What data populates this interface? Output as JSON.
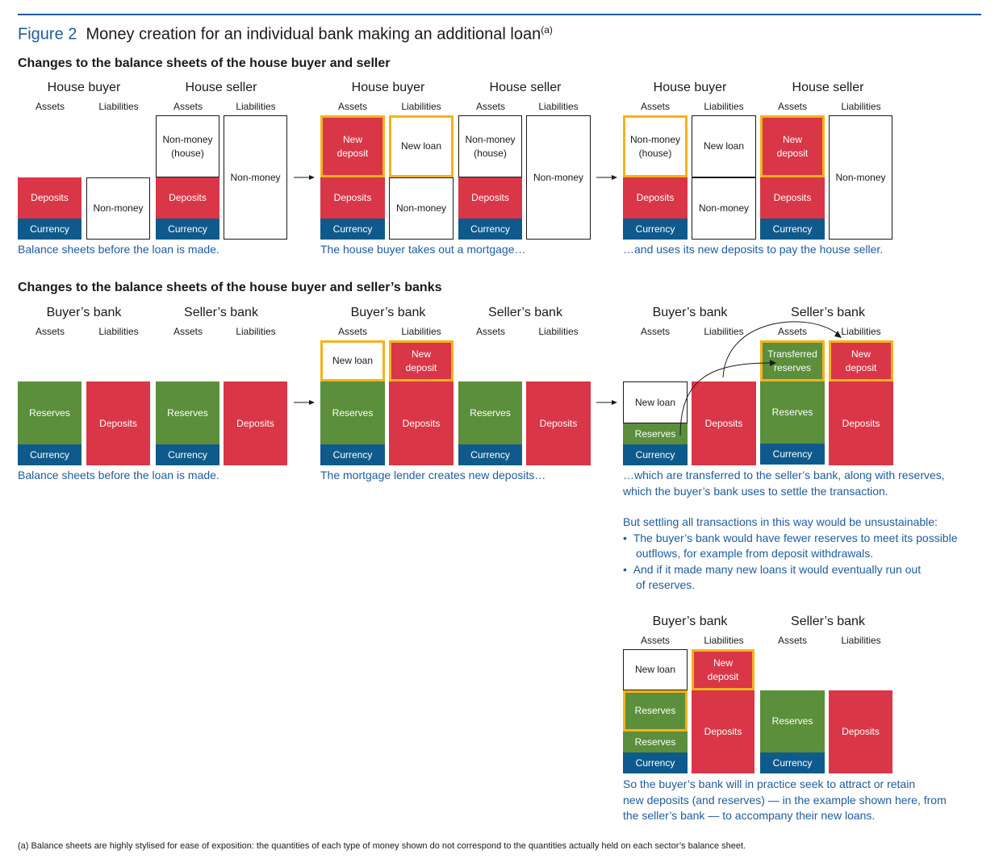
{
  "figure": {
    "number": "Figure 2",
    "title": "Money creation for an individual bank making an additional loan",
    "note_marker": "(a)"
  },
  "section1": {
    "title": "Changes to the balance sheets of the house buyer and seller",
    "panel1": {
      "entity_a": "House buyer",
      "entity_b": "House seller",
      "assets": "Assets",
      "liabilities": "Liabilities",
      "boxes": {
        "buyer_deposits": "Deposits",
        "buyer_currency": "Currency",
        "buyer_nonmoney": "Non-money",
        "seller_nonmoney_house": "Non-money\n(house)",
        "seller_deposits": "Deposits",
        "seller_currency": "Currency",
        "seller_nonmoney": "Non-money"
      },
      "caption": "Balance sheets before the loan is made."
    },
    "panel2": {
      "entity_a": "House buyer",
      "entity_b": "House seller",
      "assets": "Assets",
      "liabilities": "Liabilities",
      "boxes": {
        "buyer_new_deposit": "New\ndeposit",
        "buyer_deposits": "Deposits",
        "buyer_currency": "Currency",
        "buyer_new_loan": "New loan",
        "buyer_nonmoney": "Non-money",
        "seller_nonmoney_house": "Non-money\n(house)",
        "seller_deposits": "Deposits",
        "seller_currency": "Currency",
        "seller_nonmoney": "Non-money"
      },
      "caption": "The house buyer takes out a mortgage…"
    },
    "panel3": {
      "entity_a": "House buyer",
      "entity_b": "House seller",
      "assets": "Assets",
      "liabilities": "Liabilities",
      "boxes": {
        "buyer_nonmoney_house": "Non-money\n(house)",
        "buyer_deposits": "Deposits",
        "buyer_currency": "Currency",
        "buyer_new_loan": "New loan",
        "buyer_nonmoney": "Non-money",
        "seller_new_deposit": "New\ndeposit",
        "seller_deposits": "Deposits",
        "seller_currency": "Currency",
        "seller_nonmoney": "Non-money"
      },
      "caption": "…and uses its new deposits to pay the house seller."
    }
  },
  "section2": {
    "title": "Changes to the balance sheets of the house buyer and seller’s banks",
    "panel1": {
      "entity_a": "Buyer’s bank",
      "entity_b": "Seller’s bank",
      "assets": "Assets",
      "liabilities": "Liabilities",
      "boxes": {
        "buyer_reserves": "Reserves",
        "buyer_currency": "Currency",
        "buyer_deposits": "Deposits",
        "seller_reserves": "Reserves",
        "seller_currency": "Currency",
        "seller_deposits": "Deposits"
      },
      "caption": "Balance sheets before the loan is made."
    },
    "panel2": {
      "entity_a": "Buyer’s bank",
      "entity_b": "Seller’s bank",
      "assets": "Assets",
      "liabilities": "Liabilities",
      "boxes": {
        "buyer_new_loan": "New loan",
        "buyer_reserves": "Reserves",
        "buyer_currency": "Currency",
        "buyer_new_deposit": "New\ndeposit",
        "buyer_deposits": "Deposits",
        "seller_reserves": "Reserves",
        "seller_currency": "Currency",
        "seller_deposits": "Deposits"
      },
      "caption": "The mortgage lender creates new deposits…"
    },
    "panel3": {
      "entity_a": "Buyer’s bank",
      "entity_b": "Seller’s bank",
      "assets": "Assets",
      "liabilities": "Liabilities",
      "boxes": {
        "buyer_new_loan": "New loan",
        "buyer_reserves": "Reserves",
        "buyer_currency": "Currency",
        "buyer_deposits": "Deposits",
        "seller_transferred_reserves": "Transferred\nreserves",
        "seller_reserves": "Reserves",
        "seller_currency": "Currency",
        "seller_new_deposit": "New\ndeposit",
        "seller_deposits": "Deposits"
      },
      "caption_lines": [
        "…which are transferred to the seller’s bank, along with reserves,",
        "which the buyer’s bank uses to settle the transaction."
      ]
    },
    "unsustainable": {
      "intro": "But settling all transactions in this way would be unsustainable:",
      "bullet_mark": "•",
      "bullet1_lines": [
        "The buyer’s bank would have fewer reserves to meet its possible",
        "outflows, for example from deposit withdrawals."
      ],
      "bullet2_lines": [
        "And if it made many new loans it would eventually run out",
        "of reserves."
      ]
    },
    "panel4": {
      "entity_a": "Buyer’s bank",
      "entity_b": "Seller’s bank",
      "assets": "Assets",
      "liabilities": "Liabilities",
      "boxes": {
        "buyer_new_loan": "New loan",
        "buyer_new_reserves": "Reserves",
        "buyer_reserves": "Reserves",
        "buyer_currency": "Currency",
        "buyer_new_deposit": "New\ndeposit",
        "buyer_deposits": "Deposits",
        "seller_reserves": "Reserves",
        "seller_currency": "Currency",
        "seller_deposits": "Deposits"
      },
      "caption_lines": [
        "So the buyer’s bank will in practice seek to attract or retain",
        "new deposits (and reserves) — in the example shown here, from",
        "the seller’s bank — to accompany their new loans."
      ]
    }
  },
  "footnote": "(a)  Balance sheets are highly stylised for ease of exposition:  the quantities of each type of money shown do not correspond to the quantities actually held on each sector’s balance sheet.",
  "colors": {
    "deposits_red": "#d93647",
    "reserves_green": "#5b8f3c",
    "currency_blue": "#0f5a8c",
    "highlight_orange": "#f5b21b",
    "caption_blue": "#1f5b9c"
  }
}
